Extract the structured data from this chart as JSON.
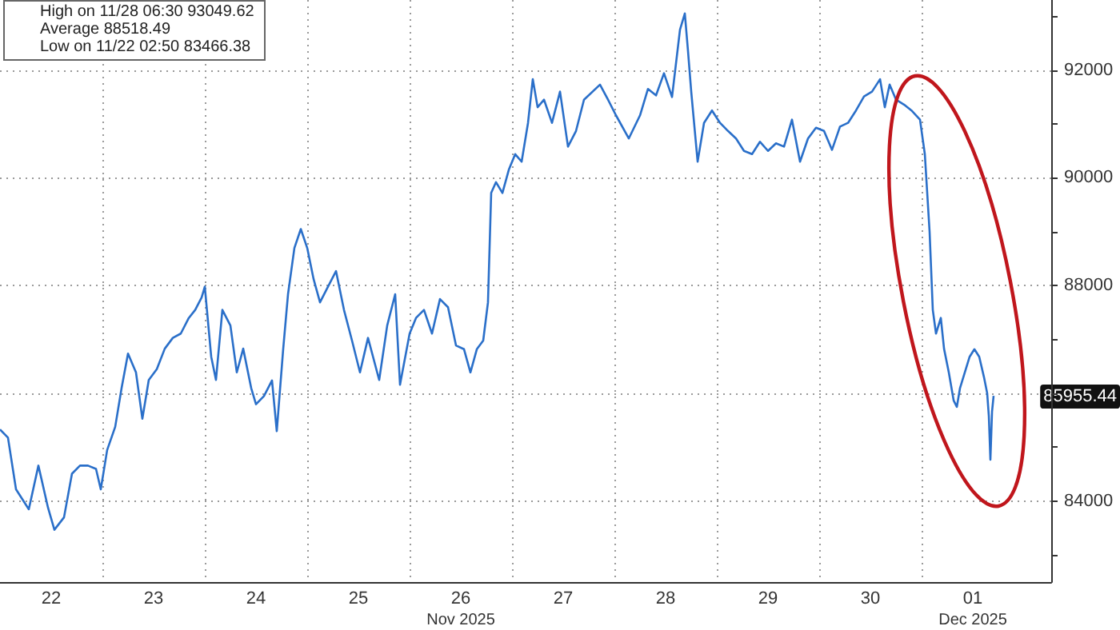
{
  "chart_data": {
    "type": "line",
    "annotations": [
      "High on 11/28 06:30 93049.62",
      "Average 88518.49",
      "Low on 11/22 02:50 83466.38",
      {
        "text": "85955.44",
        "x": "2025-12-01T16:52",
        "y": 85955.44
      },
      "Nov 2025",
      "Dec 2025"
    ],
    "x": [
      "2025-11-22T00:00",
      "2025-11-22T01:52",
      "2025-11-22T03:45",
      "2025-11-22T06:45",
      "2025-11-22T09:00",
      "2025-11-22T11:15",
      "2025-11-22T12:45",
      "2025-11-22T15:00",
      "2025-11-22T16:52",
      "2025-11-22T18:45",
      "2025-11-22T20:37",
      "2025-11-22T22:30",
      "2025-11-22T23:37",
      "2025-11-23T01:07",
      "2025-11-23T03:00",
      "2025-11-23T04:30",
      "2025-11-23T06:00",
      "2025-11-23T07:52",
      "2025-11-23T09:22",
      "2025-11-23T10:52",
      "2025-11-23T12:45",
      "2025-11-23T14:37",
      "2025-11-23T16:30",
      "2025-11-23T18:22",
      "2025-11-23T20:15",
      "2025-11-23T21:45",
      "2025-11-23T23:15",
      "2025-11-24T00:00",
      "2025-11-24T01:30",
      "2025-11-24T02:37",
      "2025-11-24T04:07",
      "2025-11-24T06:00",
      "2025-11-24T07:30",
      "2025-11-24T09:00",
      "2025-11-24T10:52",
      "2025-11-24T12:00",
      "2025-11-24T13:52",
      "2025-11-24T15:45",
      "2025-11-24T16:52",
      "2025-11-24T18:22",
      "2025-11-24T19:30",
      "2025-11-24T21:00",
      "2025-11-24T22:30",
      "2025-11-25T00:00",
      "2025-11-25T01:30",
      "2025-11-25T03:00",
      "2025-11-25T04:52",
      "2025-11-25T06:45",
      "2025-11-25T08:37",
      "2025-11-25T10:30",
      "2025-11-25T12:22",
      "2025-11-25T14:15",
      "2025-11-25T16:52",
      "2025-11-25T18:45",
      "2025-11-25T20:37",
      "2025-11-25T21:45",
      "2025-11-26T00:00",
      "2025-11-26T01:30",
      "2025-11-26T03:22",
      "2025-11-26T05:15",
      "2025-11-26T07:07",
      "2025-11-26T09:00",
      "2025-11-26T10:52",
      "2025-11-26T12:45",
      "2025-11-26T14:15",
      "2025-11-26T15:45",
      "2025-11-26T17:15",
      "2025-11-26T18:22",
      "2025-11-26T19:07",
      "2025-11-26T20:15",
      "2025-11-26T21:45",
      "2025-11-26T23:15",
      "2025-11-27T00:45",
      "2025-11-27T02:15",
      "2025-11-27T03:45",
      "2025-11-27T04:52",
      "2025-11-27T06:00",
      "2025-11-27T07:30",
      "2025-11-27T09:22",
      "2025-11-27T11:15",
      "2025-11-27T13:07",
      "2025-11-27T15:00",
      "2025-11-27T16:52",
      "2025-11-27T20:37",
      "2025-11-27T22:30",
      "2025-11-28T00:22",
      "2025-11-28T03:22",
      "2025-11-28T06:00",
      "2025-11-28T07:52",
      "2025-11-28T09:45",
      "2025-11-28T11:37",
      "2025-11-28T13:30",
      "2025-11-28T15:22",
      "2025-11-28T16:30",
      "2025-11-28T17:15",
      "2025-11-28T18:00",
      "2025-11-28T19:30",
      "2025-11-28T21:00",
      "2025-11-28T22:52",
      "2025-11-29T00:45",
      "2025-11-29T02:37",
      "2025-11-29T04:30",
      "2025-11-29T06:22",
      "2025-11-29T08:15",
      "2025-11-29T10:07",
      "2025-11-29T12:00",
      "2025-11-29T13:52",
      "2025-11-29T15:45",
      "2025-11-29T17:37",
      "2025-11-29T19:30",
      "2025-11-29T21:22",
      "2025-11-29T23:15",
      "2025-11-30T01:07",
      "2025-11-30T03:00",
      "2025-11-30T04:52",
      "2025-11-30T06:45",
      "2025-11-30T08:37",
      "2025-11-30T10:30",
      "2025-11-30T12:22",
      "2025-11-30T14:15",
      "2025-11-30T15:22",
      "2025-11-30T16:30",
      "2025-11-30T18:00",
      "2025-11-30T19:52",
      "2025-11-30T21:45",
      "2025-11-30T23:37",
      "2025-12-01T00:45",
      "2025-12-01T01:52",
      "2025-12-01T02:37",
      "2025-12-01T03:22",
      "2025-12-01T04:30",
      "2025-12-01T05:15",
      "2025-12-01T06:22",
      "2025-12-01T07:30",
      "2025-12-01T08:15",
      "2025-12-01T09:00",
      "2025-12-01T10:07",
      "2025-12-01T11:15",
      "2025-12-01T12:22",
      "2025-12-01T13:30",
      "2025-12-01T14:37",
      "2025-12-01T15:22",
      "2025-12-01T15:45",
      "2025-12-01T16:07",
      "2025-12-01T16:30",
      "2025-12-01T16:52"
    ],
    "series": [
      {
        "color": "#2a6fc9",
        "values": [
          85330,
          85180,
          84220,
          83850,
          84660,
          83880,
          83470,
          83700,
          84510,
          84660,
          84660,
          84600,
          84220,
          84950,
          85380,
          86100,
          86740,
          86390,
          85530,
          86250,
          86450,
          86830,
          87030,
          87110,
          87400,
          87550,
          87780,
          87980,
          86680,
          86250,
          87550,
          87260,
          86390,
          86830,
          86100,
          85800,
          85950,
          86240,
          85300,
          86820,
          87840,
          88700,
          89050,
          88700,
          88120,
          87690,
          87980,
          88270,
          87550,
          86980,
          86390,
          87030,
          86250,
          87260,
          87840,
          86160,
          87110,
          87400,
          87550,
          87110,
          87750,
          87600,
          86890,
          86820,
          86390,
          86820,
          86980,
          87690,
          89720,
          89920,
          89720,
          90150,
          90440,
          90300,
          91020,
          91830,
          91310,
          91450,
          91020,
          91600,
          90580,
          90870,
          91450,
          91730,
          91450,
          91160,
          90730,
          91160,
          91650,
          91530,
          91940,
          91500,
          92750,
          93050,
          92350,
          91600,
          90300,
          91020,
          91250,
          91020,
          90870,
          90730,
          90500,
          90440,
          90670,
          90500,
          90640,
          90580,
          91080,
          90300,
          90730,
          90930,
          90870,
          90520,
          90950,
          91020,
          91250,
          91510,
          91600,
          91830,
          91310,
          91730,
          91450,
          91360,
          91240,
          91080,
          90440,
          89000,
          87550,
          87110,
          87400,
          86830,
          86390,
          85870,
          85750,
          86100,
          86390,
          86680,
          86820,
          86680,
          86300,
          86000,
          85580,
          84770,
          85660,
          85955.44
        ]
      }
    ],
    "xlim": [
      "2025-11-22T00:00",
      "2025-12-02T06:22"
    ],
    "xticks": [
      {
        "value": "2025-11-22T12:00",
        "label": "22"
      },
      {
        "value": "2025-11-23T12:00",
        "label": "23"
      },
      {
        "value": "2025-11-24T12:00",
        "label": "24"
      },
      {
        "value": "2025-11-25T12:00",
        "label": "25"
      },
      {
        "value": "2025-11-26T12:00",
        "label": "26"
      },
      {
        "value": "2025-11-27T12:00",
        "label": "27"
      },
      {
        "value": "2025-11-28T12:00",
        "label": "28"
      },
      {
        "value": "2025-11-29T12:00",
        "label": "29"
      },
      {
        "value": "2025-11-30T12:00",
        "label": "30"
      },
      {
        "value": "2025-12-01T12:00",
        "label": "01"
      },
      {
        "value": "2025-11-23T00:00",
        "label": null
      },
      {
        "value": "2025-11-24T00:00",
        "label": null
      },
      {
        "value": "2025-11-25T00:00",
        "label": null
      },
      {
        "value": "2025-11-26T00:00",
        "label": null
      },
      {
        "value": "2025-11-27T00:00",
        "label": null
      },
      {
        "value": "2025-11-28T00:00",
        "label": null
      },
      {
        "value": "2025-11-29T00:00",
        "label": null
      },
      {
        "value": "2025-11-30T00:00",
        "label": null
      },
      {
        "value": "2025-12-01T00:00",
        "label": null
      }
    ],
    "ylim": [
      82500,
      93300
    ],
    "yticks": [
      84000,
      {
        "value": 86000,
        "label": null
      },
      88000,
      90000,
      92000,
      {
        "value": 83000,
        "label": null
      },
      {
        "value": 85000,
        "label": null
      },
      {
        "value": 87000,
        "label": null
      },
      {
        "value": 89000,
        "label": null
      },
      {
        "value": 91000,
        "label": null
      },
      {
        "value": 93000,
        "label": null
      }
    ],
    "grid": true
  }
}
